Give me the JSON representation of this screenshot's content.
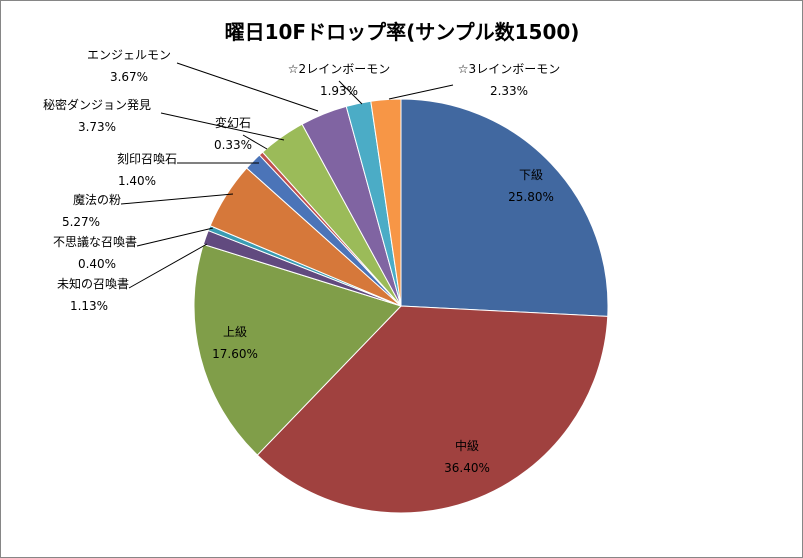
{
  "chart_data": {
    "type": "pie",
    "title": "曜日10Fドロップ率(サンプル数1500)",
    "slices": [
      {
        "name": "下級",
        "value": 25.8,
        "label": "25.80%",
        "color": "#4168A0"
      },
      {
        "name": "中級",
        "value": 36.4,
        "label": "36.40%",
        "color": "#A0413F"
      },
      {
        "name": "上級",
        "value": 17.6,
        "label": "17.60%",
        "color": "#809E49"
      },
      {
        "name": "未知の召喚書",
        "value": 1.13,
        "label": "1.13%",
        "color": "#614A7F"
      },
      {
        "name": "不思議な召喚書",
        "value": 0.4,
        "label": "0.40%",
        "color": "#3A9CB3"
      },
      {
        "name": "魔法の粉",
        "value": 5.27,
        "label": "5.27%",
        "color": "#D6783A"
      },
      {
        "name": "刻印召喚石",
        "value": 1.4,
        "label": "1.40%",
        "color": "#4B74B8"
      },
      {
        "name": "変幻石",
        "value": 0.33,
        "label": "0.33%",
        "color": "#C0504D"
      },
      {
        "name": "秘密ダンジョン発見",
        "value": 3.73,
        "label": "3.73%",
        "color": "#9BBB59"
      },
      {
        "name": "エンジェルモン",
        "value": 3.67,
        "label": "3.67%",
        "color": "#8064A2"
      },
      {
        "name": "☆2レインボーモン",
        "value": 1.93,
        "label": "1.93%",
        "color": "#4BACC6"
      },
      {
        "name": "☆3レインボーモン",
        "value": 2.33,
        "label": "2.33%",
        "color": "#F79646"
      }
    ]
  }
}
